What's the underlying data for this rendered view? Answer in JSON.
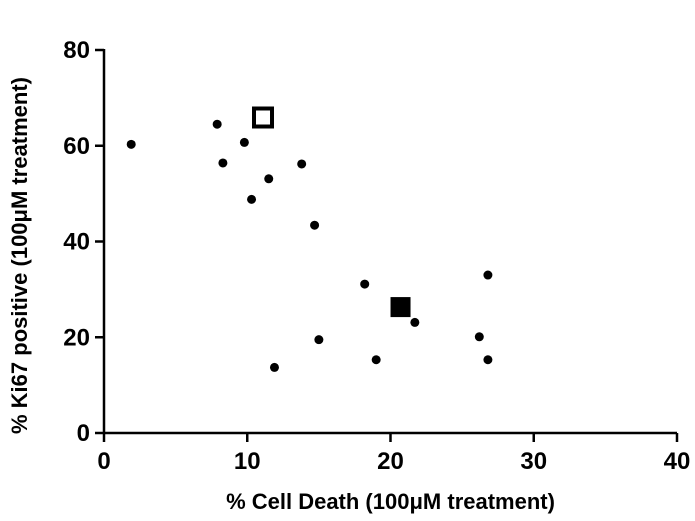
{
  "chart_data": {
    "type": "scatter",
    "title": "",
    "xlabel": "% Cell Death (100μM treatment)",
    "ylabel": "% Ki67 positive (100μM treatment)",
    "xlim": [
      0,
      40
    ],
    "ylim": [
      0,
      80
    ],
    "x_ticks": [
      0,
      10,
      20,
      30,
      40
    ],
    "y_ticks": [
      0,
      20,
      40,
      60,
      80
    ],
    "grid": false,
    "series": [
      {
        "marker": "circle",
        "color": "#000000",
        "points": [
          {
            "x": 1.9,
            "y": 60.3
          },
          {
            "x": 7.9,
            "y": 64.5
          },
          {
            "x": 8.3,
            "y": 56.4
          },
          {
            "x": 9.8,
            "y": 60.7
          },
          {
            "x": 10.3,
            "y": 48.8
          },
          {
            "x": 11.5,
            "y": 53.1
          },
          {
            "x": 11.9,
            "y": 13.7
          },
          {
            "x": 13.8,
            "y": 56.2
          },
          {
            "x": 14.7,
            "y": 43.4
          },
          {
            "x": 15.0,
            "y": 19.5
          },
          {
            "x": 18.2,
            "y": 31.1
          },
          {
            "x": 19.0,
            "y": 15.3
          },
          {
            "x": 21.7,
            "y": 23.1
          },
          {
            "x": 26.2,
            "y": 20.1
          },
          {
            "x": 26.8,
            "y": 33.0
          },
          {
            "x": 26.8,
            "y": 15.3
          }
        ]
      },
      {
        "marker": "square-open",
        "color": "#000000",
        "points": [
          {
            "x": 11.1,
            "y": 65.9
          }
        ]
      },
      {
        "marker": "square-filled",
        "color": "#000000",
        "points": [
          {
            "x": 20.7,
            "y": 26.3
          }
        ]
      }
    ]
  }
}
